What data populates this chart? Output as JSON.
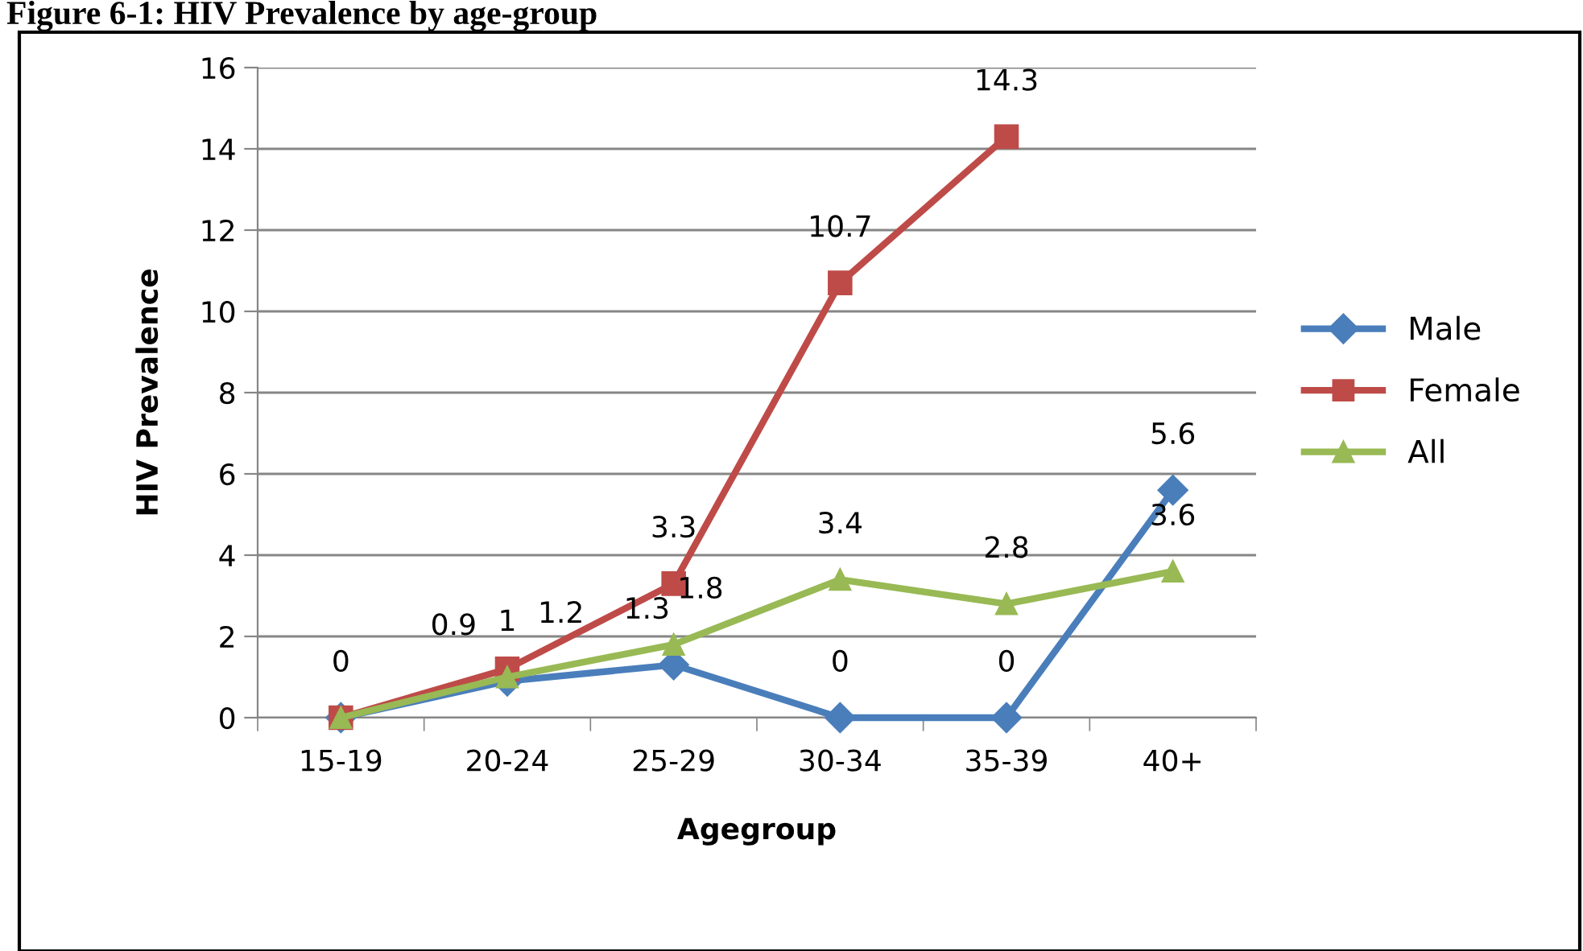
{
  "chart_data": {
    "type": "line",
    "title": "Figure 6-1: HIV Prevalence by age-group",
    "xlabel": "Agegroup",
    "ylabel": "HIV Prevalence",
    "categories": [
      "15-19",
      "20-24",
      "25-29",
      "30-34",
      "35-39",
      "40+"
    ],
    "series": [
      {
        "name": "Male",
        "color": "#4a7ebb",
        "marker": "diamond",
        "values": [
          0,
          0.9,
          1.3,
          0,
          0,
          5.6
        ],
        "value_labels": [
          "0",
          "0.9",
          "1.3",
          "0",
          "0",
          "5.6"
        ]
      },
      {
        "name": "Female",
        "color": "#be4b48",
        "marker": "square",
        "values": [
          0,
          1.2,
          3.3,
          10.7,
          14.3,
          null
        ],
        "value_labels": [
          null,
          "1.2",
          "3.3",
          "10.7",
          "14.3",
          null
        ]
      },
      {
        "name": "All",
        "color": "#98b954",
        "marker": "triangle",
        "values": [
          0,
          1,
          1.8,
          3.4,
          2.8,
          3.6
        ],
        "value_labels": [
          null,
          "1",
          "1.8",
          "3.4",
          "2.8",
          "3.6"
        ]
      }
    ],
    "ylim": [
      0,
      16
    ],
    "yticks": [
      0,
      2,
      4,
      6,
      8,
      10,
      12,
      14,
      16
    ],
    "grid": "y",
    "legend": "right",
    "line_style": "solid"
  }
}
